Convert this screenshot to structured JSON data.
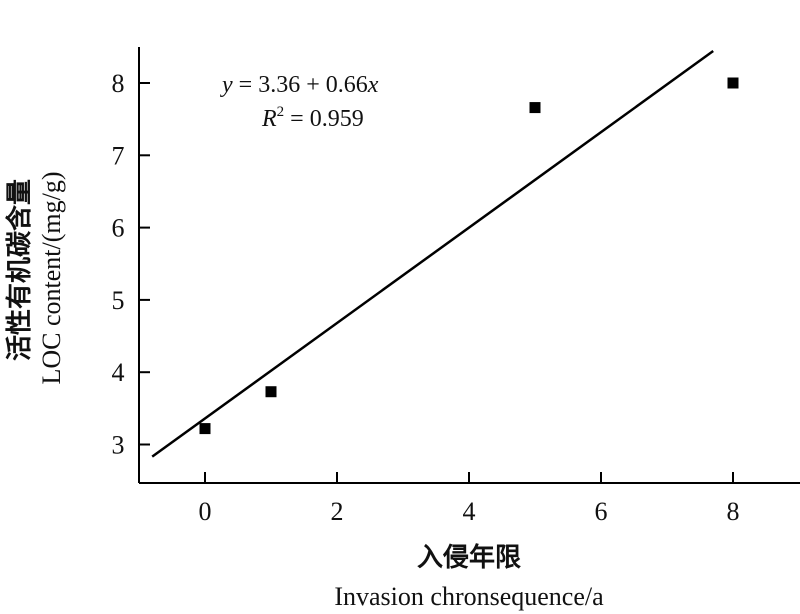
{
  "chart_data": {
    "type": "scatter",
    "xlabel_cn": "入侵年限",
    "xlabel_en": "Invasion chronsequence/a",
    "ylabel_cn": "活性有机碳含量",
    "ylabel_en": "LOC content/(mg/g)",
    "xlim": [
      -1,
      9.0
    ],
    "ylim": [
      2.6,
      8.55
    ],
    "xticks": [
      0,
      2,
      4,
      6,
      8
    ],
    "yticks": [
      3,
      4,
      5,
      6,
      7,
      8
    ],
    "points": [
      {
        "x": 0,
        "y": 3.22
      },
      {
        "x": 1,
        "y": 3.73
      },
      {
        "x": 5,
        "y": 7.66
      },
      {
        "x": 8,
        "y": 8.0
      }
    ],
    "fit": {
      "intercept": 3.36,
      "slope": 0.66,
      "x_start": -0.8,
      "x_end": 7.7
    },
    "annotation": {
      "eq_y": "y",
      "eq_rest": " = 3.36 + 0.66",
      "eq_x": "x",
      "r2_r": "R",
      "r2_sup": "2",
      "r2_rest": " = 0.959"
    }
  }
}
